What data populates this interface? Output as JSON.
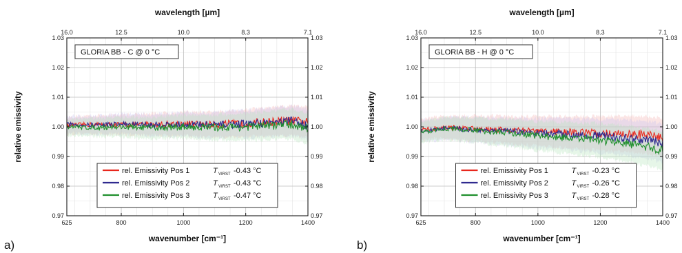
{
  "chart_data": [
    {
      "type": "line",
      "panel_label": "a)",
      "title": "GLORIA BB - C  @  0 °C",
      "xlabel": "wavenumber [cm⁻¹]",
      "xlabel_top": "wavelength [µm]",
      "ylabel": "relative emissivity",
      "xlim": [
        625,
        1400
      ],
      "ylim": [
        0.97,
        1.03
      ],
      "x_ticks": [
        "625",
        "800",
        "1000",
        "1200",
        "1400"
      ],
      "x_tick_values": [
        625,
        800,
        1000,
        1200,
        1400
      ],
      "x_top_ticks": [
        "16.0",
        "12.5",
        "10.0",
        "8.3",
        "7.1"
      ],
      "x_top_tick_values": [
        625,
        800,
        1000,
        1200,
        1400
      ],
      "y_ticks": [
        "0.97",
        "0.98",
        "0.99",
        "1.00",
        "1.01",
        "1.02",
        "1.03"
      ],
      "y_tick_values": [
        0.97,
        0.98,
        0.99,
        1.0,
        1.01,
        1.02,
        1.03
      ],
      "grid": true,
      "legend_position": "bottom-center",
      "x": [
        625,
        700,
        800,
        900,
        1000,
        1100,
        1200,
        1300,
        1350,
        1400
      ],
      "series": [
        {
          "name": "rel. Emissivity Pos 1",
          "temp_label": "T",
          "temp_subscript": "VIRST",
          "temp_value": "-0.43 °C",
          "color": "#e8271d",
          "values": [
            1.0005,
            1.0008,
            1.0007,
            1.0008,
            1.001,
            1.0008,
            1.0012,
            1.0018,
            1.002,
            1.0015
          ]
        },
        {
          "name": "rel. Emissivity Pos 2",
          "temp_label": "T",
          "temp_subscript": "VIRST",
          "temp_value": "-0.43 °C",
          "color": "#2f2a8f",
          "values": [
            1.0008,
            1.0006,
            1.001,
            1.0006,
            1.0008,
            1.0006,
            1.001,
            1.0015,
            1.002,
            1.0005
          ]
        },
        {
          "name": "rel. Emissivity Pos 3",
          "temp_label": "T",
          "temp_subscript": "VIRST",
          "temp_value": "-0.47 °C",
          "color": "#1f8f2c",
          "values": [
            1.0,
            0.9998,
            1.0,
            0.9996,
            1.0,
            0.9998,
            1.0,
            1.0006,
            1.0008,
            0.9995
          ]
        }
      ],
      "uncertainty_band": 0.004
    },
    {
      "type": "line",
      "panel_label": "b)",
      "title": "GLORIA BB - H  @  0 °C",
      "xlabel": "wavenumber [cm⁻¹]",
      "xlabel_top": "wavelength [µm]",
      "ylabel": "relative emissivity",
      "xlim": [
        625,
        1400
      ],
      "ylim": [
        0.97,
        1.03
      ],
      "x_ticks": [
        "625",
        "800",
        "1000",
        "1200",
        "1400"
      ],
      "x_tick_values": [
        625,
        800,
        1000,
        1200,
        1400
      ],
      "x_top_ticks": [
        "16.0",
        "12.5",
        "10.0",
        "8.3",
        "7.1"
      ],
      "x_top_tick_values": [
        625,
        800,
        1000,
        1200,
        1400
      ],
      "y_ticks": [
        "0.97",
        "0.98",
        "0.99",
        "1.00",
        "1.01",
        "1.02",
        "1.03"
      ],
      "y_tick_values": [
        0.97,
        0.98,
        0.99,
        1.0,
        1.01,
        1.02,
        1.03
      ],
      "grid": true,
      "legend_position": "bottom-center",
      "x": [
        625,
        700,
        800,
        900,
        1000,
        1100,
        1200,
        1300,
        1350,
        1400
      ],
      "series": [
        {
          "name": "rel. Emissivity Pos 1",
          "temp_label": "T",
          "temp_subscript": "VIRST",
          "temp_value": "-0.23 °C",
          "color": "#e8271d",
          "values": [
            0.999,
            0.9998,
            0.9995,
            0.999,
            0.9985,
            0.9982,
            0.9978,
            0.9975,
            0.9972,
            0.9965
          ]
        },
        {
          "name": "rel. Emissivity Pos 2",
          "temp_label": "T",
          "temp_subscript": "VIRST",
          "temp_value": "-0.26 °C",
          "color": "#2f2a8f",
          "values": [
            0.9985,
            0.9995,
            0.999,
            0.9985,
            0.9978,
            0.9975,
            0.997,
            0.996,
            0.9955,
            0.9945
          ]
        },
        {
          "name": "rel. Emissivity Pos 3",
          "temp_label": "T",
          "temp_subscript": "VIRST",
          "temp_value": "-0.28 °C",
          "color": "#1f8f2c",
          "values": [
            0.998,
            0.9995,
            0.9988,
            0.998,
            0.997,
            0.9962,
            0.9955,
            0.994,
            0.9932,
            0.992
          ]
        }
      ],
      "uncertainty_band": 0.005
    }
  ]
}
